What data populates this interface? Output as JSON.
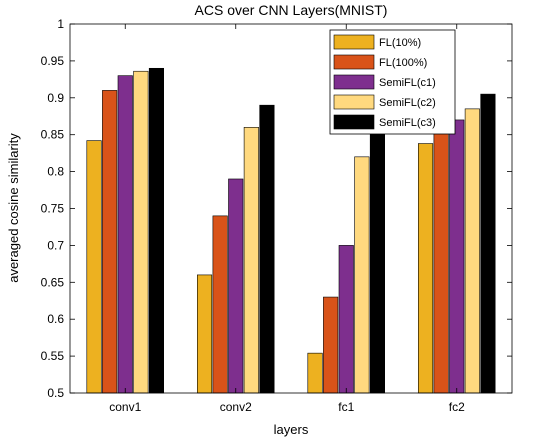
{
  "chart_data": {
    "type": "bar",
    "title": "ACS over CNN Layers(MNIST)",
    "xlabel": "layers",
    "ylabel": "averaged cosine similarity",
    "categories": [
      "conv1",
      "conv2",
      "fc1",
      "fc2"
    ],
    "ylim": [
      0.5,
      1
    ],
    "yticks": [
      0.5,
      0.55,
      0.6,
      0.65,
      0.7,
      0.75,
      0.8,
      0.85,
      0.9,
      0.95,
      1
    ],
    "ytick_labels": [
      "0.5",
      "0.55",
      "0.6",
      "0.65",
      "0.7",
      "0.75",
      "0.8",
      "0.85",
      "0.9",
      "0.95",
      "1"
    ],
    "grid": false,
    "legend_position": "top-right",
    "series": [
      {
        "name": "FL(10%)",
        "color": "#EDB120",
        "values": [
          0.842,
          0.66,
          0.554,
          0.838
        ]
      },
      {
        "name": "FL(100%)",
        "color": "#D95319",
        "values": [
          0.91,
          0.74,
          0.63,
          0.858
        ]
      },
      {
        "name": "SemiFL(c1)",
        "color": "#7E2F8E",
        "values": [
          0.93,
          0.79,
          0.7,
          0.87
        ]
      },
      {
        "name": "SemiFL(c2)",
        "color": "#FFD97F",
        "values": [
          0.936,
          0.86,
          0.82,
          0.885
        ]
      },
      {
        "name": "SemiFL(c3)",
        "color": "#000000",
        "values": [
          0.94,
          0.89,
          0.86,
          0.905
        ]
      }
    ]
  }
}
